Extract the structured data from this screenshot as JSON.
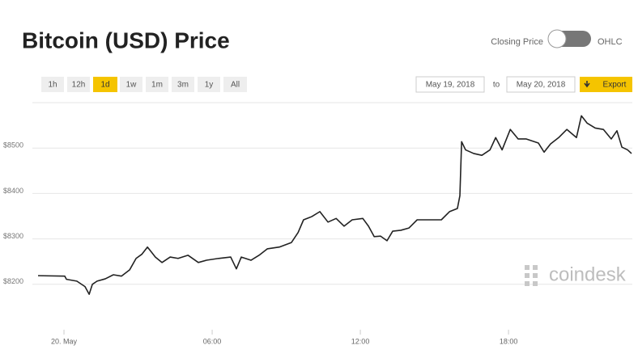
{
  "header": {
    "closing_label": "Closing Price",
    "ohlc_label": "OHLC"
  },
  "controls": {
    "ranges": [
      "1h",
      "12h",
      "1d",
      "1w",
      "1m",
      "3m",
      "1y",
      "All"
    ],
    "date_from": "May 19, 2018",
    "date_sep": "to",
    "date_to": "May 20, 2018",
    "export": "Export"
  },
  "watermark": "coindesk",
  "chart_data": {
    "type": "line",
    "title": "Bitcoin (USD) Price",
    "color": "#222222",
    "x": [
      -1.05,
      0.03,
      0.1,
      0.52,
      0.85,
      1.02,
      1.15,
      1.34,
      1.67,
      2.0,
      2.33,
      2.66,
      2.92,
      3.15,
      3.38,
      3.54,
      3.7,
      3.97,
      4.3,
      4.62,
      5.02,
      5.44,
      5.77,
      6.26,
      6.75,
      6.98,
      7.18,
      7.57,
      7.9,
      8.23,
      8.72,
      9.21,
      9.48,
      9.7,
      10.03,
      10.36,
      10.69,
      11.02,
      11.34,
      11.67,
      12.1,
      12.33,
      12.56,
      12.82,
      13.08,
      13.31,
      13.64,
      13.97,
      14.3,
      14.79,
      15.28,
      15.61,
      15.93,
      16.03,
      16.1,
      16.26,
      16.59,
      16.92,
      17.25,
      17.48,
      17.74,
      18.07,
      18.39,
      18.72,
      19.21,
      19.44,
      19.7,
      20.03,
      20.36,
      20.75,
      20.95,
      21.18,
      21.51,
      21.84,
      22.16,
      22.39,
      22.59,
      22.82,
      22.98
    ],
    "values": [
      8219,
      8218,
      8211,
      8207,
      8195,
      8178,
      8200,
      8207,
      8212,
      8221,
      8218,
      8232,
      8257,
      8266,
      8282,
      8271,
      8260,
      8248,
      8260,
      8257,
      8264,
      8248,
      8253,
      8257,
      8260,
      8234,
      8260,
      8253,
      8264,
      8278,
      8282,
      8292,
      8314,
      8342,
      8349,
      8360,
      8337,
      8345,
      8328,
      8342,
      8345,
      8328,
      8305,
      8306,
      8296,
      8317,
      8319,
      8324,
      8342,
      8342,
      8342,
      8360,
      8367,
      8395,
      8514,
      8496,
      8488,
      8484,
      8496,
      8523,
      8496,
      8541,
      8520,
      8520,
      8511,
      8491,
      8509,
      8523,
      8541,
      8523,
      8571,
      8555,
      8544,
      8541,
      8520,
      8538,
      8502,
      8496,
      8488
    ],
    "xlim": [
      -1.05,
      22.98
    ],
    "xticks": [
      {
        "value": 0,
        "label": "20. May"
      },
      {
        "value": 6,
        "label": "06:00"
      },
      {
        "value": 12,
        "label": "12:00"
      },
      {
        "value": 18,
        "label": "18:00"
      }
    ],
    "ylim": [
      8100,
      8600
    ],
    "yticks": [
      {
        "value": 8200,
        "label": "$8200"
      },
      {
        "value": 8300,
        "label": "$8300"
      },
      {
        "value": 8400,
        "label": "$8400"
      },
      {
        "value": 8500,
        "label": "$8500"
      }
    ],
    "grid": true
  }
}
